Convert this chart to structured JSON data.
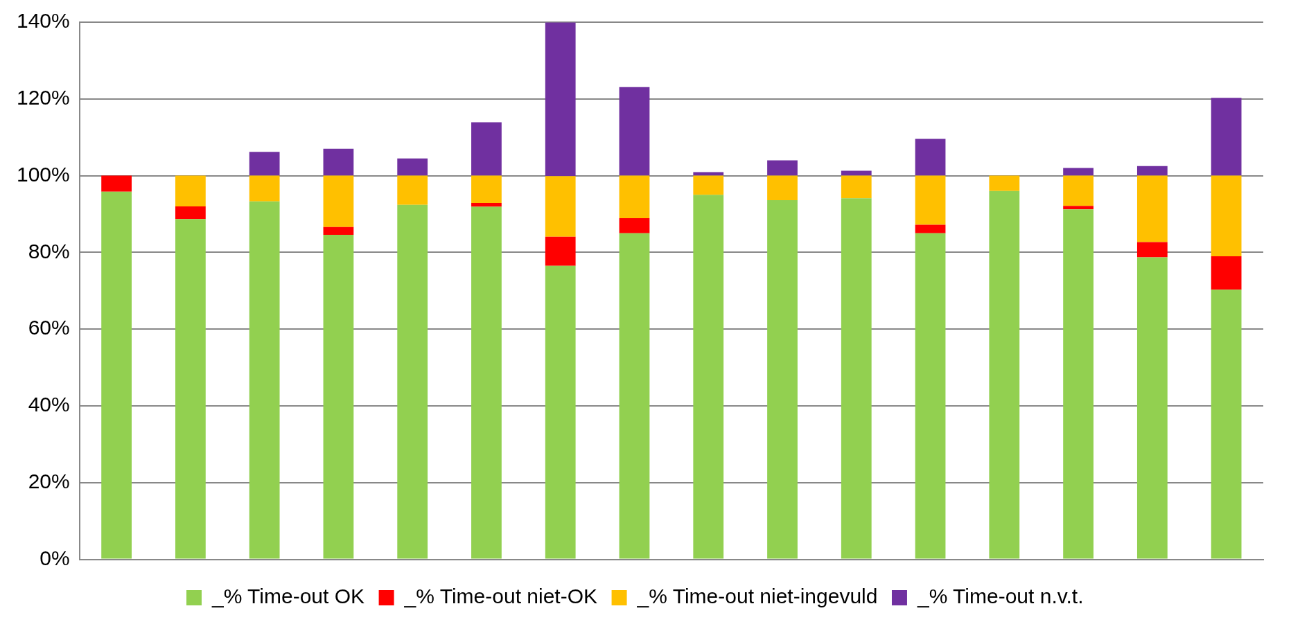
{
  "chart_data": {
    "type": "bar",
    "stacked": true,
    "categories": [
      null,
      null,
      null,
      null,
      null,
      null,
      null,
      null,
      null,
      null,
      null,
      null,
      null,
      null,
      null,
      null
    ],
    "series": [
      {
        "name": "_% Time-out OK",
        "color": "#92d050",
        "values": [
          95.8,
          88.7,
          93.3,
          84.6,
          92.4,
          91.9,
          76.5,
          85.0,
          95.0,
          93.6,
          94.1,
          85.0,
          96.0,
          91.2,
          78.7,
          70.3
        ]
      },
      {
        "name": "_% Time-out niet-OK",
        "color": "#ff0000",
        "values": [
          4.2,
          3.3,
          0,
          2.0,
          0,
          1.0,
          7.6,
          3.9,
          0,
          0,
          0,
          2.2,
          0,
          0.9,
          4.0,
          8.7
        ]
      },
      {
        "name": "_% Time-out niet-ingevuld",
        "color": "#ffc000",
        "values": [
          0,
          8.0,
          6.7,
          13.4,
          7.6,
          7.1,
          15.8,
          11.1,
          5.0,
          6.4,
          5.9,
          12.8,
          4.0,
          7.9,
          17.3,
          21.0
        ]
      },
      {
        "name": "_% Time-out n.v.t.",
        "color": "#7030a0",
        "values": [
          0,
          0,
          6.2,
          7.0,
          4.5,
          13.9,
          40,
          23.1,
          0.9,
          4.0,
          1.3,
          9.6,
          0,
          2.0,
          2.5,
          20.3
        ]
      }
    ],
    "ylim": [
      0,
      140
    ],
    "yticks": [
      {
        "value": 0,
        "label": "0%"
      },
      {
        "value": 20,
        "label": "20%"
      },
      {
        "value": 40,
        "label": "40%"
      },
      {
        "value": 60,
        "label": "60%"
      },
      {
        "value": 80,
        "label": "80%"
      },
      {
        "value": 100,
        "label": "100%"
      },
      {
        "value": 120,
        "label": "120%"
      },
      {
        "value": 140,
        "label": "140%"
      }
    ],
    "grid": "y",
    "legend": "bottom"
  }
}
